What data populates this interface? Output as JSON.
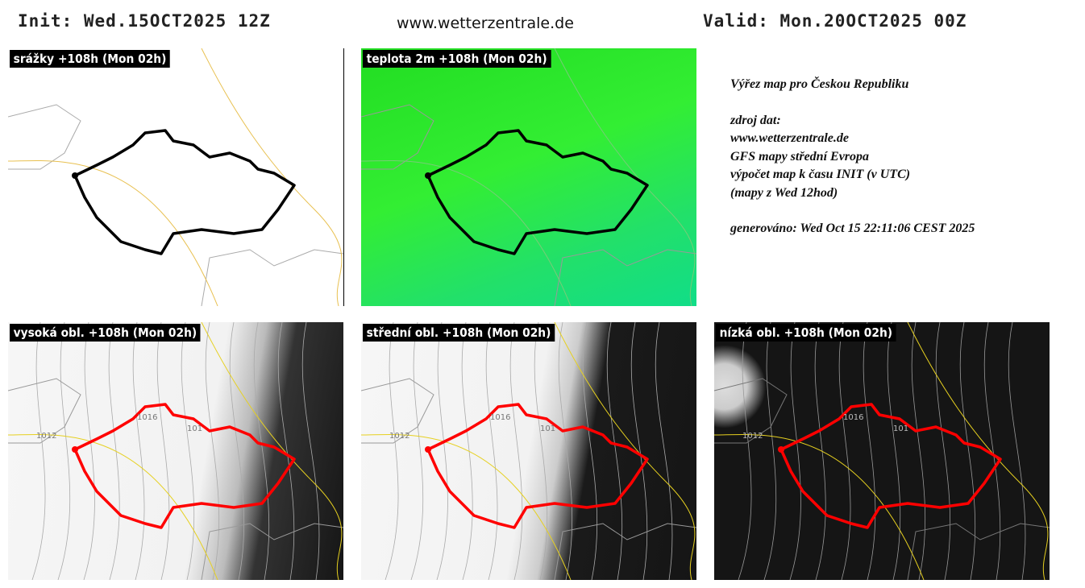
{
  "header": {
    "init": "Init: Wed.15OCT2025 12Z",
    "site": "www.wetterzentrale.de",
    "valid": "Valid: Mon.20OCT2025 00Z"
  },
  "panels": [
    {
      "label": "srážky +108h (Mon 02h)"
    },
    {
      "label": "teplota 2m +108h (Mon 02h)"
    },
    {
      "label": "vysoká obl. +108h (Mon 02h)",
      "isobar_labels": [
        "1012",
        "1016",
        "101"
      ]
    },
    {
      "label": "střední obl. +108h (Mon 02h)",
      "isobar_labels": [
        "1012",
        "1016",
        "101"
      ]
    },
    {
      "label": "nízká obl. +108h (Mon 02h)",
      "isobar_labels": [
        "1012",
        "1016",
        "101"
      ]
    }
  ],
  "info": {
    "title": "Výřez map pro Českou Republiku",
    "source_lines": [
      "zdroj dat:",
      "www.wetterzentrale.de",
      "GFS mapy střední Evropa",
      "výpočet map k času INIT (v UTC)",
      "(mapy z Wed 12hod)"
    ],
    "generated": "generováno: Wed Oct 15 22:11:06 CEST 2025"
  }
}
